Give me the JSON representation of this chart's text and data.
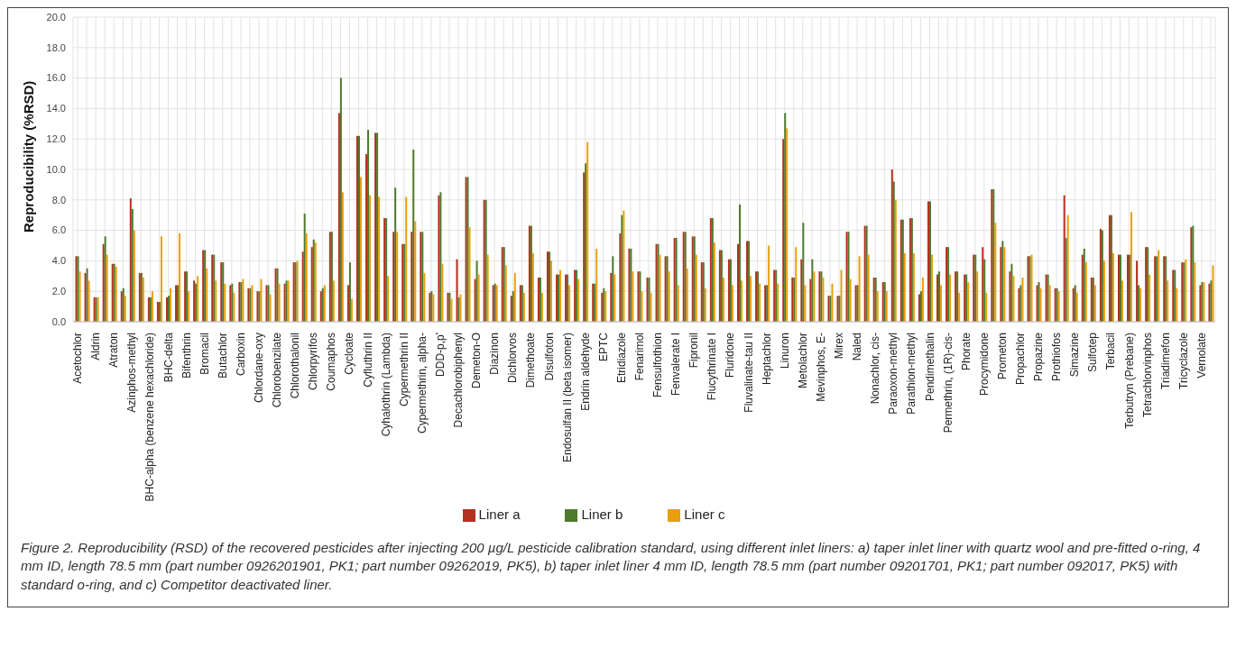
{
  "chart_data": {
    "type": "bar",
    "ylabel": "Reproducibility (%RSD)",
    "categories": [
      "Acetochlor",
      null,
      "Aldrin",
      null,
      "Atraton",
      null,
      "Azinphos-methyl",
      null,
      "BHC-alpha (benzene hexachloride)",
      null,
      "BHC-delta",
      null,
      "Bifenthrin",
      null,
      "Bromacil",
      null,
      "Butachlor",
      null,
      "Carboxin",
      null,
      "Chlordane-oxy",
      null,
      "Chlorobenzilate",
      null,
      "Chlorothalonil",
      null,
      "Chlorpyrifos",
      null,
      "Coumaphos",
      null,
      "Cycloate",
      null,
      "Cyfluthrin II",
      null,
      "Cyhalothrin (Lambda)",
      null,
      "Cypermethrin II",
      null,
      "Cypermethrin, alpha-",
      null,
      "DDD-p,p'",
      null,
      "Decachlorobiphenyl",
      null,
      "Demeton-O",
      null,
      "Diazinon",
      null,
      "Dichlorvos",
      null,
      "Dimethoate",
      null,
      "Disulfoton",
      null,
      "Endosulfan II (beta isomer)",
      null,
      "Endrin aldehyde",
      null,
      "EPTC",
      null,
      "Etridiazole",
      null,
      "Fenarimol",
      null,
      "Fensulfothion",
      null,
      "Fenvalerate I",
      null,
      "Fipronil",
      null,
      "Flucythrinate I",
      null,
      "Fluridone",
      null,
      "Fluvalinate-tau II",
      null,
      "Heptachlor",
      null,
      "Linuron",
      null,
      "Metolachlor",
      null,
      "Mevinphos, E-",
      null,
      "Mirex",
      null,
      "Naled",
      null,
      "Nonachlor, cis-",
      null,
      "Paraoxon-methyl",
      null,
      "Parathion-methyl",
      null,
      "Pendimethalin",
      null,
      "Permethrin, (1R)-cis-",
      null,
      "Phorate",
      null,
      "Procymidone",
      null,
      "Prometon",
      null,
      "Propachlor",
      null,
      "Propazine",
      null,
      "Prothiofos",
      null,
      "Simazine",
      null,
      "Sulfotep",
      null,
      "Terbacil",
      null,
      "Terbutryn (Prebane)",
      null,
      "Tetrachlorvinphos",
      null,
      "Triadimefon",
      null,
      "Tricyclazole",
      null,
      "Vernolate",
      null
    ],
    "series": [
      {
        "name": "Liner a",
        "color": "#b5301f",
        "values": [
          4.3,
          3.2,
          1.6,
          5.1,
          3.8,
          2.0,
          8.1,
          3.2,
          1.6,
          1.3,
          1.6,
          2.4,
          3.3,
          2.7,
          4.7,
          4.4,
          3.9,
          2.4,
          2.6,
          2.2,
          2.0,
          2.4,
          3.5,
          2.5,
          3.9,
          4.6,
          4.9,
          2.0,
          5.9,
          13.7,
          2.4,
          12.2,
          11.0,
          12.4,
          6.8,
          5.9,
          5.1,
          5.9,
          5.9,
          1.9,
          8.3,
          1.9,
          4.1,
          9.5,
          2.8,
          8.0,
          2.4,
          4.9,
          1.7,
          2.4,
          6.3,
          2.9,
          4.6,
          3.1,
          3.1,
          3.4,
          9.8,
          2.5,
          1.9,
          3.2,
          5.8,
          4.8,
          3.3,
          2.9,
          5.1,
          4.3,
          5.5,
          5.9,
          5.6,
          3.9,
          6.8,
          4.7,
          4.1,
          5.1,
          5.3,
          3.3,
          2.4,
          3.4,
          12.0,
          2.9,
          4.1,
          2.8,
          3.3,
          1.7,
          1.7,
          5.9,
          2.4,
          6.3,
          2.9,
          2.6,
          10.0,
          6.7,
          6.8,
          1.8,
          7.9,
          3.1,
          4.9,
          3.3,
          3.1,
          4.4,
          4.9,
          8.7,
          4.9,
          3.3,
          2.2,
          4.3,
          2.4,
          3.1,
          2.2,
          8.3,
          2.2,
          4.4,
          2.9,
          6.1,
          7.0,
          4.4,
          4.4,
          4.0,
          4.9,
          4.3,
          4.3,
          3.4,
          3.9,
          6.2,
          2.4,
          2.5
        ]
      },
      {
        "name": "Liner b",
        "color": "#4e7a2c",
        "values": [
          4.3,
          3.5,
          1.6,
          5.6,
          3.8,
          2.2,
          7.4,
          3.2,
          1.6,
          1.3,
          1.7,
          2.4,
          3.3,
          2.5,
          4.7,
          4.4,
          3.9,
          2.5,
          2.6,
          2.2,
          2.0,
          2.4,
          3.5,
          2.7,
          3.9,
          7.1,
          5.4,
          2.2,
          5.9,
          16.0,
          3.9,
          12.2,
          12.6,
          12.4,
          6.8,
          8.8,
          5.1,
          11.3,
          5.9,
          2.0,
          8.5,
          1.9,
          1.6,
          9.5,
          4.0,
          8.0,
          2.5,
          4.9,
          2.0,
          2.4,
          6.3,
          2.9,
          4.6,
          3.1,
          3.1,
          3.4,
          10.4,
          2.5,
          2.2,
          4.3,
          7.0,
          4.8,
          3.3,
          2.9,
          5.1,
          4.3,
          5.5,
          5.9,
          5.6,
          3.9,
          6.8,
          4.7,
          4.1,
          7.7,
          5.3,
          3.3,
          2.4,
          3.4,
          13.7,
          2.9,
          6.5,
          4.1,
          3.3,
          1.7,
          1.7,
          5.9,
          2.4,
          6.3,
          2.9,
          2.6,
          9.2,
          6.7,
          6.8,
          2.0,
          7.9,
          3.3,
          4.9,
          3.3,
          3.1,
          4.4,
          4.1,
          8.7,
          5.3,
          3.8,
          2.4,
          4.3,
          2.6,
          3.1,
          2.2,
          5.5,
          2.4,
          4.8,
          2.9,
          6.0,
          7.0,
          4.4,
          4.4,
          2.4,
          4.9,
          4.3,
          4.3,
          3.4,
          3.9,
          6.3,
          2.6,
          2.7
        ]
      },
      {
        "name": "Liner c",
        "color": "#e8a00c",
        "values": [
          3.3,
          2.7,
          1.6,
          4.4,
          3.6,
          1.7,
          6.0,
          2.9,
          2.0,
          5.6,
          2.2,
          5.8,
          2.0,
          3.0,
          3.5,
          2.7,
          2.5,
          1.9,
          2.8,
          2.4,
          2.8,
          1.8,
          2.5,
          2.7,
          4.0,
          5.8,
          5.2,
          2.4,
          2.7,
          8.5,
          1.5,
          9.5,
          8.3,
          8.2,
          3.0,
          5.9,
          8.2,
          6.6,
          3.2,
          1.8,
          3.8,
          1.5,
          1.8,
          6.2,
          3.1,
          4.4,
          2.4,
          3.7,
          3.2,
          1.9,
          4.5,
          1.9,
          4.0,
          3.4,
          2.4,
          2.8,
          11.8,
          4.8,
          2.0,
          3.1,
          7.3,
          3.3,
          2.0,
          1.9,
          4.4,
          3.3,
          2.4,
          3.5,
          4.4,
          2.2,
          5.2,
          2.9,
          2.4,
          2.7,
          3.0,
          2.5,
          5.0,
          2.5,
          12.7,
          4.9,
          2.4,
          3.3,
          2.9,
          2.5,
          3.4,
          2.8,
          4.3,
          4.4,
          2.0,
          2.0,
          8.0,
          4.5,
          4.5,
          2.9,
          4.4,
          2.4,
          3.1,
          1.9,
          2.6,
          3.3,
          1.9,
          6.5,
          4.9,
          3.0,
          2.9,
          4.4,
          2.2,
          2.4,
          2.0,
          7.0,
          1.9,
          3.9,
          2.4,
          4.0,
          4.5,
          2.7,
          7.2,
          2.2,
          3.1,
          4.7,
          2.7,
          2.2,
          4.1,
          3.9,
          2.6,
          3.7
        ]
      }
    ],
    "ylim": [
      0,
      20
    ],
    "yticks": [
      {
        "value": 0,
        "label": "0.0"
      },
      {
        "value": 2,
        "label": "2.0"
      },
      {
        "value": 4,
        "label": "4.0"
      },
      {
        "value": 6,
        "label": "6.0"
      },
      {
        "value": 8,
        "label": "8.0"
      },
      {
        "value": 10,
        "label": "10.0"
      },
      {
        "value": 12,
        "label": "12.0"
      },
      {
        "value": 14,
        "label": "14.0"
      },
      {
        "value": 16,
        "label": "16.0"
      },
      {
        "value": 18,
        "label": "18.0"
      },
      {
        "value": 20,
        "label": "20.0"
      }
    ],
    "grid": true,
    "legend": "bottom",
    "annotations": [
      "Figure 2. Reproducibility (RSD) of the recovered pesticides after injecting 200 µg/L pesticide calibration standard, using different inlet liners: a) taper inlet liner with quartz wool and pre-fitted o-ring, 4 mm ID, length 78.5 mm (part number 0926201901, PK1; part number 09262019, PK5), b) taper inlet liner 4 mm ID, length 78.5 mm (part number 09201701, PK1; part number 092017, PK5) with standard o-ring, and c) Competitor deactivated liner."
    ]
  }
}
